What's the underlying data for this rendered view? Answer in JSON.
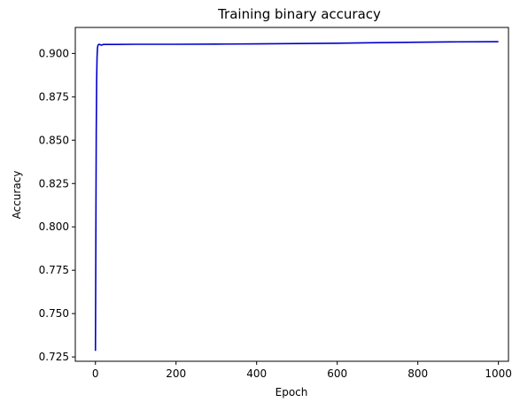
{
  "chart_data": {
    "type": "line",
    "title": "Training binary accuracy",
    "xlabel": "Epoch",
    "ylabel": "Accuracy",
    "xlim": [
      -50,
      1025
    ],
    "ylim": [
      0.7225,
      0.915
    ],
    "xticks": [
      0,
      200,
      400,
      600,
      800,
      1000
    ],
    "xtick_labels": [
      "0",
      "200",
      "400",
      "600",
      "800",
      "1000"
    ],
    "yticks": [
      0.725,
      0.75,
      0.775,
      0.8,
      0.825,
      0.85,
      0.875,
      0.9
    ],
    "ytick_labels": [
      "0.725",
      "0.750",
      "0.775",
      "0.800",
      "0.825",
      "0.850",
      "0.875",
      "0.900"
    ],
    "grid": false,
    "series": [
      {
        "color": "#0000cc",
        "x": [
          0,
          1,
          2,
          3,
          4,
          5,
          6,
          7,
          8,
          10,
          15,
          20,
          30,
          50,
          100,
          200,
          300,
          400,
          500,
          600,
          700,
          800,
          900,
          1000
        ],
        "y": [
          0.7285,
          0.795,
          0.855,
          0.885,
          0.898,
          0.903,
          0.9045,
          0.905,
          0.9052,
          0.9052,
          0.9048,
          0.9052,
          0.9052,
          0.9052,
          0.9053,
          0.9053,
          0.9054,
          0.9055,
          0.9057,
          0.9059,
          0.9062,
          0.9065,
          0.9067,
          0.9068
        ]
      }
    ]
  }
}
